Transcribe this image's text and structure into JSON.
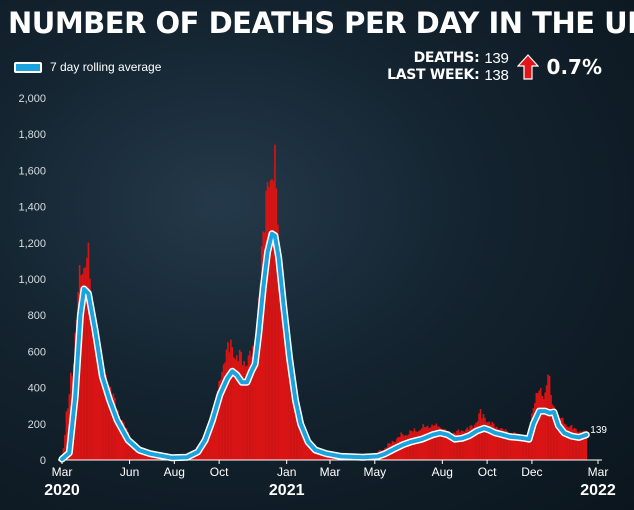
{
  "title": "NUMBER OF DEATHS PER DAY IN THE UK",
  "legend": {
    "label": "7 day rolling average"
  },
  "stats": {
    "deaths_label": "DEATHS:",
    "deaths_value": "139",
    "last_week_label": "LAST WEEK:",
    "last_week_value": "138",
    "change": "0.7%",
    "arrow_icon": "red-up-arrow-icon"
  },
  "colors": {
    "bars": "#d81414",
    "line": "#1aa3dc",
    "line_outline": "#ffffff",
    "arrow": "#e0161b"
  },
  "chart_data": {
    "type": "bar",
    "overlay": "line",
    "title": "NUMBER OF DEATHS PER DAY IN THE UK",
    "ylim": [
      0,
      2000
    ],
    "yticks": [
      "0",
      "200",
      "400",
      "600",
      "800",
      "1,000",
      "1,200",
      "1,400",
      "1,600",
      "1,800",
      "2,000"
    ],
    "xticks": [
      {
        "label": "Mar",
        "t": 0
      },
      {
        "label": "Jun",
        "t": 92
      },
      {
        "label": "Aug",
        "t": 153
      },
      {
        "label": "Oct",
        "t": 214
      },
      {
        "label": "Jan",
        "t": 306
      },
      {
        "label": "Mar",
        "t": 365
      },
      {
        "label": "May",
        "t": 426
      },
      {
        "label": "Aug",
        "t": 518
      },
      {
        "label": "Oct",
        "t": 579
      },
      {
        "label": "Dec",
        "t": 640
      },
      {
        "label": "Mar",
        "t": 730
      }
    ],
    "years": [
      {
        "label": "2020",
        "t": 0
      },
      {
        "label": "2021",
        "t": 306
      },
      {
        "label": "2022",
        "t": 730
      }
    ],
    "grid": false,
    "legend_position": "top-left",
    "series": [
      {
        "name": "7 day rolling average",
        "kind": "line",
        "points": [
          [
            0,
            5
          ],
          [
            10,
            40
          ],
          [
            18,
            350
          ],
          [
            25,
            800
          ],
          [
            30,
            945
          ],
          [
            36,
            920
          ],
          [
            45,
            720
          ],
          [
            55,
            460
          ],
          [
            65,
            330
          ],
          [
            75,
            220
          ],
          [
            90,
            110
          ],
          [
            105,
            55
          ],
          [
            120,
            35
          ],
          [
            150,
            12
          ],
          [
            170,
            15
          ],
          [
            185,
            45
          ],
          [
            195,
            110
          ],
          [
            205,
            220
          ],
          [
            215,
            360
          ],
          [
            225,
            450
          ],
          [
            232,
            490
          ],
          [
            238,
            470
          ],
          [
            245,
            430
          ],
          [
            252,
            430
          ],
          [
            258,
            490
          ],
          [
            263,
            530
          ],
          [
            268,
            700
          ],
          [
            274,
            950
          ],
          [
            280,
            1150
          ],
          [
            286,
            1250
          ],
          [
            290,
            1240
          ],
          [
            295,
            1120
          ],
          [
            302,
            850
          ],
          [
            310,
            560
          ],
          [
            318,
            330
          ],
          [
            325,
            200
          ],
          [
            335,
            100
          ],
          [
            345,
            55
          ],
          [
            360,
            35
          ],
          [
            380,
            20
          ],
          [
            410,
            15
          ],
          [
            430,
            20
          ],
          [
            440,
            35
          ],
          [
            452,
            60
          ],
          [
            465,
            85
          ],
          [
            475,
            100
          ],
          [
            490,
            115
          ],
          [
            505,
            140
          ],
          [
            515,
            150
          ],
          [
            525,
            140
          ],
          [
            535,
            115
          ],
          [
            545,
            120
          ],
          [
            555,
            135
          ],
          [
            565,
            160
          ],
          [
            575,
            175
          ],
          [
            582,
            165
          ],
          [
            590,
            150
          ],
          [
            600,
            140
          ],
          [
            610,
            128
          ],
          [
            620,
            125
          ],
          [
            630,
            120
          ],
          [
            636,
            115
          ],
          [
            642,
            200
          ],
          [
            650,
            270
          ],
          [
            658,
            270
          ],
          [
            664,
            260
          ],
          [
            670,
            265
          ],
          [
            676,
            190
          ],
          [
            684,
            150
          ],
          [
            694,
            132
          ],
          [
            704,
            125
          ],
          [
            714,
            139
          ]
        ]
      },
      {
        "name": "Daily deaths",
        "kind": "bar",
        "peaks": [
          [
            0,
            5
          ],
          [
            22,
            1000
          ],
          [
            25,
            1120
          ],
          [
            28,
            1080
          ],
          [
            32,
            1160
          ],
          [
            36,
            1230
          ],
          [
            40,
            900
          ],
          [
            48,
            700
          ],
          [
            58,
            520
          ],
          [
            68,
            400
          ],
          [
            80,
            250
          ],
          [
            95,
            120
          ],
          [
            115,
            50
          ],
          [
            150,
            15
          ],
          [
            180,
            50
          ],
          [
            195,
            150
          ],
          [
            210,
            340
          ],
          [
            220,
            600
          ],
          [
            230,
            700
          ],
          [
            236,
            600
          ],
          [
            242,
            620
          ],
          [
            250,
            580
          ],
          [
            256,
            620
          ],
          [
            262,
            650
          ],
          [
            270,
            1100
          ],
          [
            276,
            1400
          ],
          [
            281,
            1820
          ],
          [
            285,
            1600
          ],
          [
            290,
            1750
          ],
          [
            295,
            1300
          ],
          [
            302,
            1000
          ],
          [
            310,
            650
          ],
          [
            318,
            380
          ],
          [
            330,
            150
          ],
          [
            350,
            60
          ],
          [
            380,
            25
          ],
          [
            420,
            20
          ],
          [
            440,
            80
          ],
          [
            460,
            150
          ],
          [
            480,
            180
          ],
          [
            500,
            210
          ],
          [
            515,
            200
          ],
          [
            525,
            160
          ],
          [
            540,
            170
          ],
          [
            560,
            200
          ],
          [
            570,
            290
          ],
          [
            578,
            240
          ],
          [
            590,
            200
          ],
          [
            605,
            170
          ],
          [
            620,
            150
          ],
          [
            634,
            140
          ],
          [
            642,
            350
          ],
          [
            650,
            420
          ],
          [
            656,
            380
          ],
          [
            662,
            540
          ],
          [
            668,
            320
          ],
          [
            676,
            260
          ],
          [
            686,
            220
          ],
          [
            700,
            180
          ],
          [
            714,
            160
          ]
        ]
      }
    ],
    "end_label": "139"
  }
}
